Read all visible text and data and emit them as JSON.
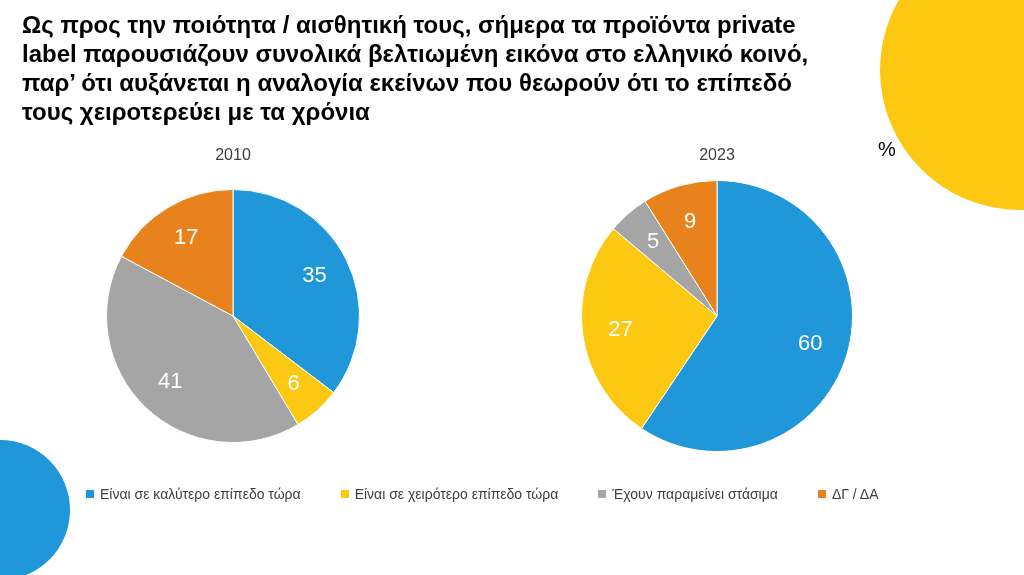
{
  "chart_data": [
    {
      "type": "pie",
      "title": "Ως προς την ποιότητα / αισθητική τους, σήμερα τα προϊόντα private label παρουσιάζουν συνολικά βελτιωμένη εικόνα στο ελληνικό κοινό, παρ’ ότι αυξάνεται η αναλογία εκείνων που θεωρούν ότι το επίπεδό τους χειροτερεύει με τα χρόνια",
      "subtitle": "2010",
      "categories": [
        "Είναι σε καλύτερο επίπεδο τώρα",
        "Είναι σε χειρότερο επίπεδο τώρα",
        "Έχουν παραμείνει στάσιμα",
        "ΔΓ / ΔΑ"
      ],
      "values": [
        35,
        6,
        41,
        17
      ],
      "colors": [
        "#1f97d9",
        "#fcc812",
        "#a5a5a5",
        "#e8821c"
      ],
      "data_labels": true,
      "legend": "bottom"
    },
    {
      "type": "pie",
      "subtitle": "2023",
      "annotations": [
        "%"
      ],
      "categories": [
        null,
        null,
        null,
        null
      ],
      "values": [
        60,
        27,
        5,
        9
      ],
      "colors": [
        "#1f97d9",
        "#fcc812",
        "#a5a5a5",
        "#e8821c"
      ],
      "data_labels": true
    }
  ]
}
